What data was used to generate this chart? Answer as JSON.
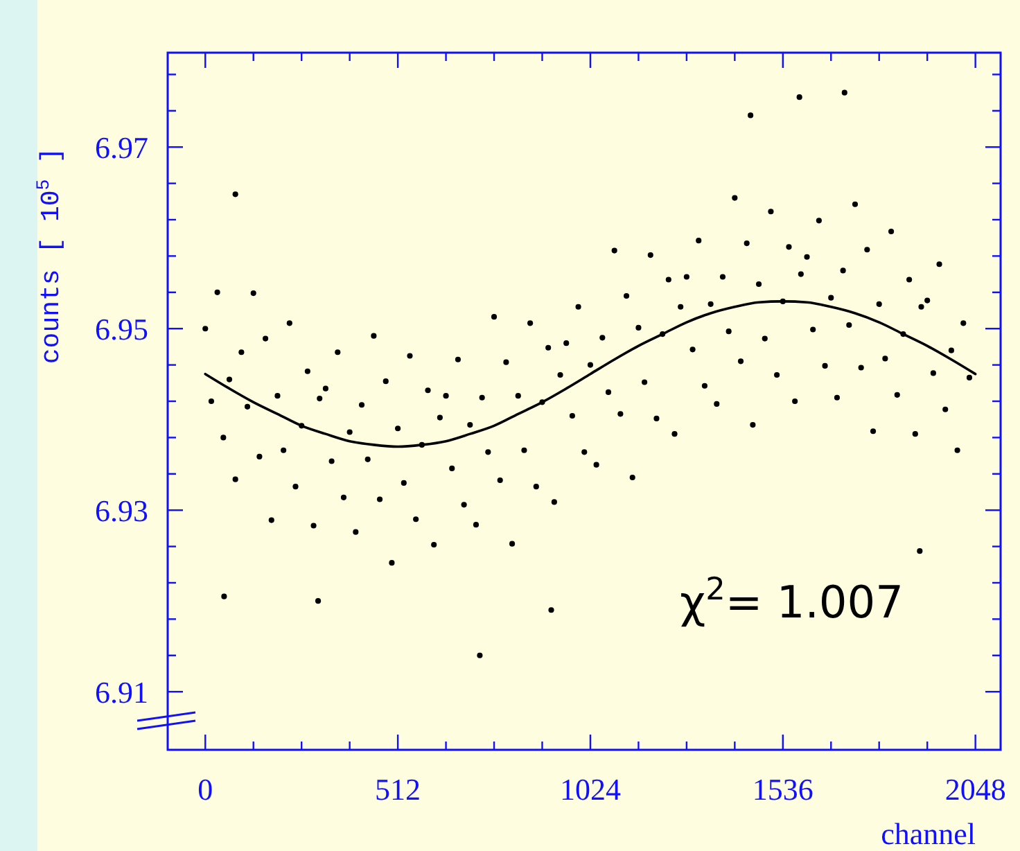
{
  "chart_data": {
    "type": "scatter",
    "xlabel": "channel",
    "ylabel": "counts [ 10$^{5}$ ]",
    "annotations": [
      "χ$^{2}$= 1.007"
    ],
    "xlim": [
      -100,
      2115
    ],
    "ylim": [
      6.9036,
      6.9804
    ],
    "xticks": [
      0,
      {
        "value": 128,
        "label": null
      },
      {
        "value": 256,
        "label": null
      },
      {
        "value": 384,
        "label": null
      },
      512,
      {
        "value": 640,
        "label": null
      },
      {
        "value": 768,
        "label": null
      },
      {
        "value": 896,
        "label": null
      },
      1024,
      {
        "value": 1152,
        "label": null
      },
      {
        "value": 1280,
        "label": null
      },
      {
        "value": 1408,
        "label": null
      },
      1536,
      {
        "value": 1664,
        "label": null
      },
      {
        "value": 1792,
        "label": null
      },
      {
        "value": 1920,
        "label": null
      },
      2048
    ],
    "yticks": [
      6.91,
      {
        "value": 6.914,
        "label": null
      },
      {
        "value": 6.918,
        "label": null
      },
      {
        "value": 6.922,
        "label": null
      },
      {
        "value": 6.926,
        "label": null
      },
      6.93,
      {
        "value": 6.934,
        "label": null
      },
      {
        "value": 6.938,
        "label": null
      },
      {
        "value": 6.942,
        "label": null
      },
      {
        "value": 6.946,
        "label": null
      },
      6.95,
      {
        "value": 6.954,
        "label": null
      },
      {
        "value": 6.958,
        "label": null
      },
      {
        "value": 6.962,
        "label": null
      },
      {
        "value": 6.966,
        "label": null
      },
      6.97,
      {
        "value": 6.974,
        "label": null
      },
      {
        "value": 6.978,
        "label": null
      }
    ],
    "series": [
      {
        "type": "scatter",
        "color": "#000000",
        "marker": "circle",
        "x": [
          0,
          16,
          32,
          48,
          64,
          80,
          96,
          112,
          128,
          144,
          160,
          176,
          192,
          208,
          224,
          240,
          256,
          272,
          288,
          304,
          320,
          336,
          352,
          368,
          384,
          400,
          416,
          432,
          448,
          464,
          480,
          496,
          512,
          528,
          544,
          560,
          576,
          592,
          608,
          624,
          640,
          656,
          672,
          688,
          704,
          720,
          736,
          752,
          768,
          784,
          800,
          816,
          832,
          848,
          864,
          880,
          896,
          912,
          928,
          944,
          960,
          976,
          992,
          1008,
          1024,
          1040,
          1056,
          1072,
          1088,
          1104,
          1120,
          1136,
          1152,
          1168,
          1184,
          1200,
          1216,
          1232,
          1248,
          1264,
          1280,
          1296,
          1312,
          1328,
          1344,
          1360,
          1376,
          1392,
          1408,
          1424,
          1440,
          1456,
          1472,
          1488,
          1504,
          1520,
          1536,
          1552,
          1568,
          1584,
          1600,
          1616,
          1632,
          1648,
          1664,
          1680,
          1696,
          1712,
          1728,
          1744,
          1760,
          1776,
          1792,
          1808,
          1824,
          1840,
          1856,
          1872,
          1888,
          1904,
          1920,
          1936,
          1952,
          1968,
          1984,
          2000,
          2016,
          2032,
          80,
          1580,
          1450,
          730,
          920,
          1700,
          1900,
          300,
          50
        ],
        "values": [
          6.95,
          6.942,
          6.954,
          6.938,
          6.9444,
          6.9334,
          6.9474,
          6.9414,
          6.9539,
          6.9359,
          6.9489,
          6.9289,
          6.9426,
          6.9366,
          6.9506,
          6.9326,
          6.9393,
          6.9453,
          6.9283,
          6.9423,
          6.9434,
          6.9354,
          6.9474,
          6.9314,
          6.9386,
          6.9276,
          6.9416,
          6.9356,
          6.9492,
          6.9312,
          6.9442,
          6.9242,
          6.939,
          6.933,
          6.947,
          6.929,
          6.9372,
          6.9432,
          6.9262,
          6.9402,
          6.9426,
          6.9346,
          6.9466,
          6.9306,
          6.9394,
          6.9284,
          6.9424,
          6.9364,
          6.9513,
          6.9333,
          6.9463,
          6.9263,
          6.9426,
          6.9366,
          6.9506,
          6.9326,
          6.9419,
          6.9479,
          6.9309,
          6.9449,
          6.9484,
          6.9404,
          6.9524,
          6.9364,
          6.946,
          6.935,
          6.949,
          6.943,
          6.9586,
          6.9406,
          6.9536,
          6.9336,
          6.9501,
          6.9441,
          6.9581,
          6.9401,
          6.9494,
          6.9554,
          6.9384,
          6.9524,
          6.9557,
          6.9477,
          6.9597,
          6.9437,
          6.9527,
          6.9417,
          6.9557,
          6.9497,
          6.9644,
          6.9464,
          6.9594,
          6.9394,
          6.9549,
          6.9489,
          6.9629,
          6.9449,
          6.953,
          6.959,
          6.942,
          6.956,
          6.9579,
          6.9499,
          6.9619,
          6.9459,
          6.9534,
          6.9424,
          6.9564,
          6.9504,
          6.9637,
          6.9457,
          6.9587,
          6.9387,
          6.9527,
          6.9467,
          6.9607,
          6.9427,
          6.9494,
          6.9554,
          6.9384,
          6.9524,
          6.9531,
          6.9451,
          6.9571,
          6.9411,
          6.9476,
          6.9366,
          6.9506,
          6.9446,
          6.9648,
          6.9755,
          6.9735,
          6.914,
          6.919,
          6.976,
          6.9255,
          6.92,
          6.9205
        ]
      },
      {
        "type": "line",
        "color": "#000000",
        "x": [
          0,
          64,
          128,
          192,
          256,
          320,
          384,
          448,
          512,
          576,
          640,
          704,
          768,
          832,
          896,
          960,
          1024,
          1088,
          1152,
          1216,
          1280,
          1344,
          1408,
          1472,
          1536,
          1600,
          1664,
          1728,
          1792,
          1856,
          1920,
          1984,
          2048
        ],
        "values": [
          6.945,
          6.9434,
          6.9419,
          6.9406,
          6.9393,
          6.9384,
          6.9376,
          6.9372,
          6.937,
          6.9372,
          6.9376,
          6.9384,
          6.9393,
          6.9406,
          6.9419,
          6.9434,
          6.945,
          6.9466,
          6.9481,
          6.9494,
          6.9507,
          6.9517,
          6.9524,
          6.9529,
          6.953,
          6.9529,
          6.9524,
          6.9517,
          6.9507,
          6.9494,
          6.9481,
          6.9466,
          6.945
        ]
      }
    ]
  }
}
